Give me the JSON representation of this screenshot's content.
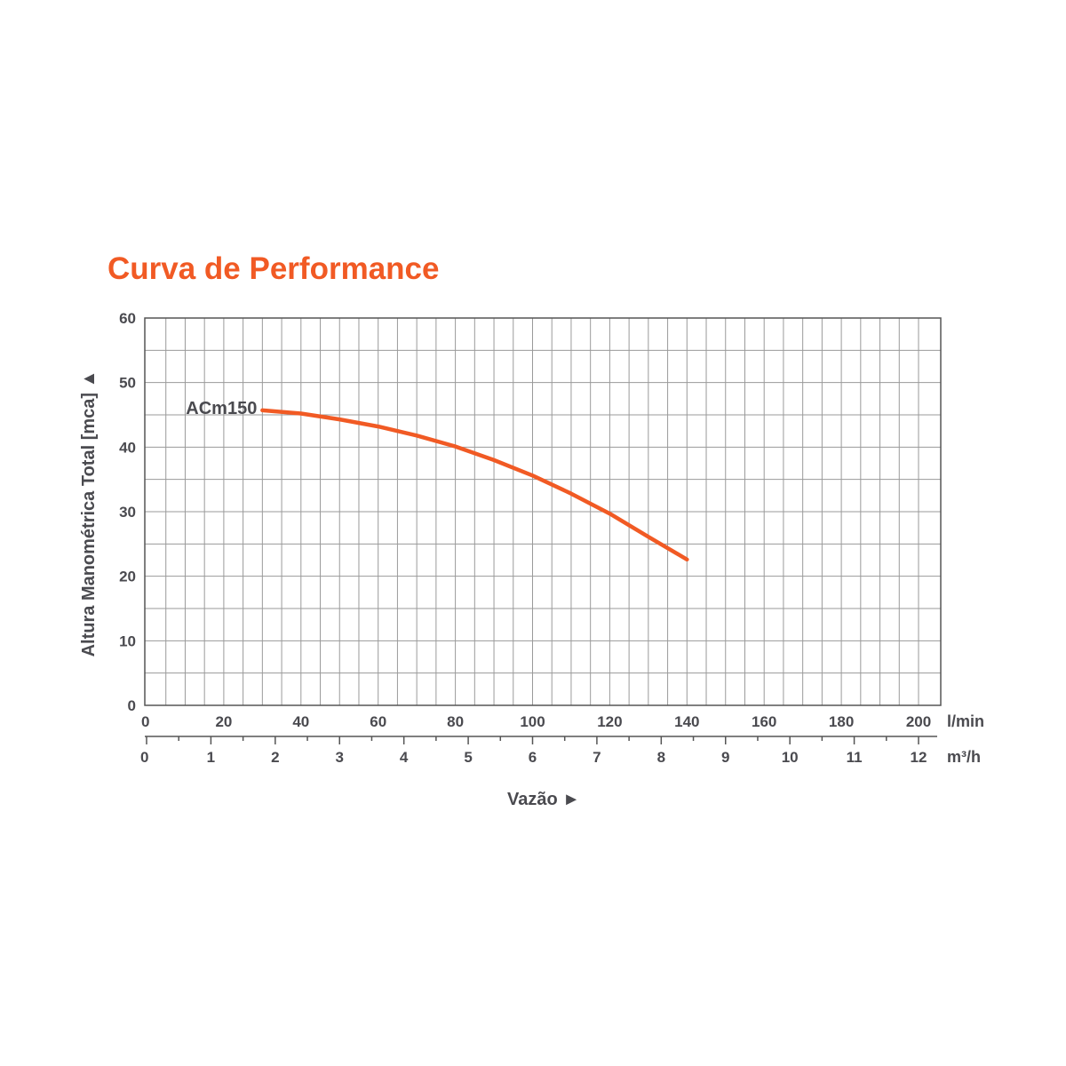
{
  "chart_data": {
    "type": "line",
    "title": "Curva de Performance",
    "ylabel": "Altura Manométrica Total [mca] ▲",
    "xlabel": "Vazão ►",
    "ylim": [
      0,
      60
    ],
    "xlim": [
      0,
      205
    ],
    "grid": true,
    "y_ticks": [
      "0",
      "10",
      "20",
      "30",
      "40",
      "50",
      "60"
    ],
    "x_ticks_primary": {
      "unit": "l/min",
      "labels": [
        "0",
        "20",
        "40",
        "60",
        "80",
        "100",
        "120",
        "140",
        "160",
        "180",
        "200"
      ]
    },
    "x_ticks_secondary": {
      "unit": "m³/h",
      "labels": [
        "0",
        "1",
        "2",
        "3",
        "4",
        "5",
        "6",
        "7",
        "8",
        "9",
        "10",
        "11",
        "12"
      ]
    },
    "series": [
      {
        "name": "ACm150",
        "color": "#f15a24",
        "x": [
          30,
          40,
          50,
          60,
          70,
          80,
          90,
          100,
          110,
          120,
          130,
          140
        ],
        "y": [
          45.7,
          45.2,
          44.3,
          43.2,
          41.8,
          40.1,
          38.0,
          35.6,
          32.8,
          29.7,
          26.1,
          22.6
        ]
      }
    ]
  }
}
